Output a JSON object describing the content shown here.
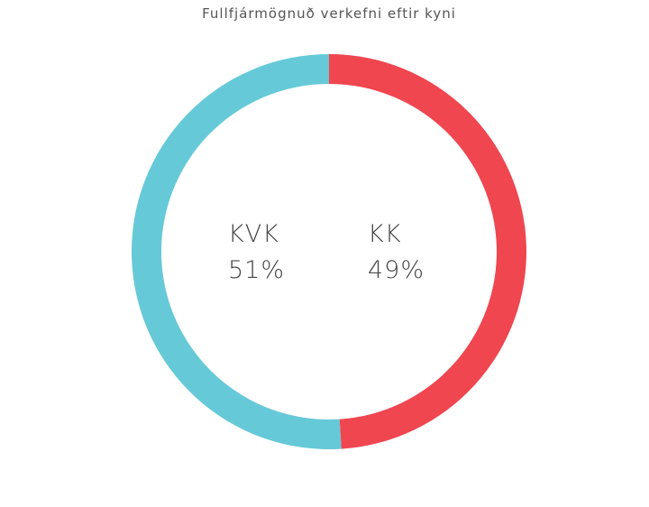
{
  "chart_data": {
    "type": "donut",
    "title": "Fullfjármögnuð verkefni eftir kyni",
    "categories": [
      "KK",
      "KVK"
    ],
    "values": [
      49,
      51
    ],
    "value_labels": [
      "49%",
      "51%"
    ],
    "colors": [
      "#ef4650",
      "#66c9d8"
    ]
  }
}
